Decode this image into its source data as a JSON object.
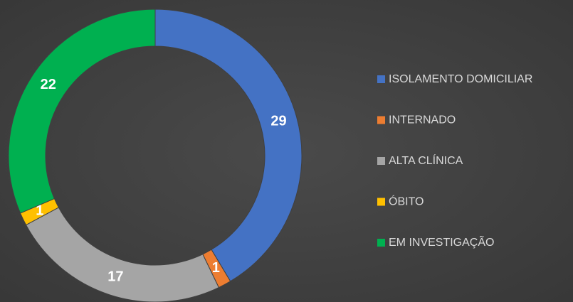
{
  "chart_data": {
    "type": "pie",
    "donut": true,
    "categories": [
      "ISOLAMENTO DOMICILIAR",
      "INTERNADO",
      "ALTA CLÍNICA",
      "ÓBITO",
      "EM INVESTIGAÇÃO"
    ],
    "values": [
      29,
      1,
      17,
      1,
      22
    ],
    "colors": [
      "#4472c4",
      "#ed7d31",
      "#a5a5a5",
      "#ffc000",
      "#00b050"
    ],
    "legend": "right"
  }
}
